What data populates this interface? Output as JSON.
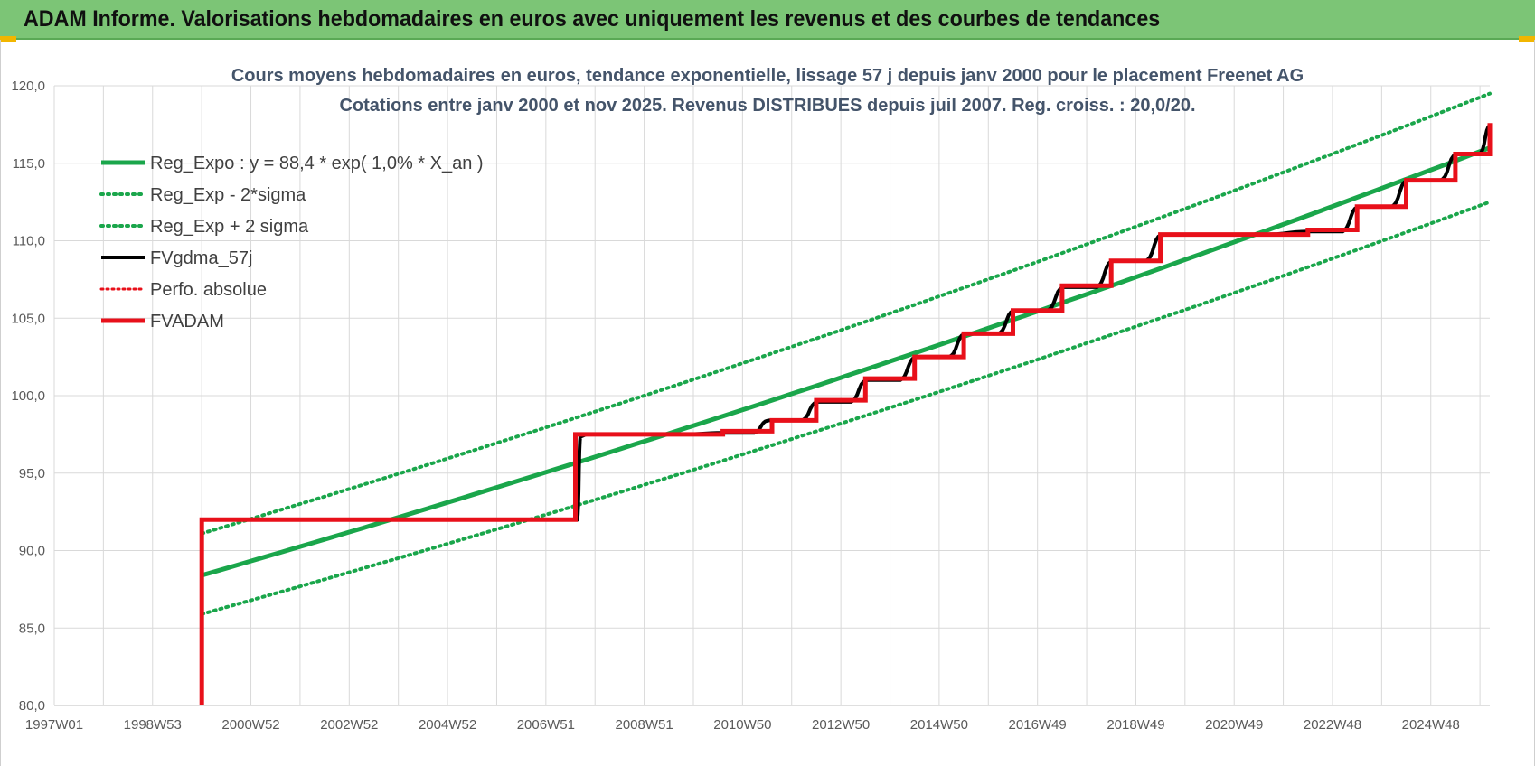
{
  "header": {
    "title": "ADAM Informe. Valorisations hebdomadaires en euros avec uniquement les revenus et des courbes de tendances"
  },
  "colors": {
    "header_bg": "#7cc576",
    "reg_green": "#1aa64b",
    "fv_black": "#000000",
    "adam_red": "#e8101a",
    "grid": "#d9d9d9"
  },
  "chart_data": {
    "type": "line",
    "title": "Cours moyens hebdomadaires en euros, tendance exponentielle, lissage 57 j depuis janv 2000 pour le placement Freenet AG",
    "subtitle": "Cotations entre janv 2000 et nov 2025. Revenus DISTRIBUES depuis juil 2007. Reg. croiss. : 20,0/20.",
    "xlabel": "",
    "ylabel": "",
    "xlim": [
      1997.0,
      2026.2
    ],
    "ylim": [
      80,
      120
    ],
    "y_ticks": [
      "80,0",
      "85,0",
      "90,0",
      "95,0",
      "100,0",
      "105,0",
      "110,0",
      "115,0",
      "120,0"
    ],
    "x_tick_labels": [
      "1997W01",
      "1998W53",
      "2000W52",
      "2002W52",
      "2004W52",
      "2006W51",
      "2008W51",
      "2010W50",
      "2012W50",
      "2014W50",
      "2016W49",
      "2018W49",
      "2020W49",
      "2022W48",
      "2024W48"
    ],
    "x_tick_years": [
      1997.0,
      1999.0,
      2001.0,
      2003.0,
      2005.0,
      2007.0,
      2009.0,
      2011.0,
      2013.0,
      2015.0,
      2017.0,
      2019.0,
      2021.0,
      2023.0,
      2025.0
    ],
    "grid": true,
    "legend_position": "top-left",
    "series": [
      {
        "name": "Reg_Expo : y = 88,4 * exp( 1,0% *  X_an )",
        "style": "solid-green",
        "points": [
          [
            2000.0,
            88.4
          ],
          [
            2026.2,
            116.0
          ]
        ]
      },
      {
        "name": "Reg_Exp - 2*sigma",
        "style": "dotted-green",
        "points": [
          [
            2000.0,
            85.9
          ],
          [
            2026.2,
            112.5
          ]
        ]
      },
      {
        "name": "Reg_Exp + 2 sigma",
        "style": "dotted-green",
        "points": [
          [
            2000.0,
            91.1
          ],
          [
            2026.2,
            119.5
          ]
        ]
      },
      {
        "name": "FVgdma_57j",
        "style": "solid-black-smooth",
        "points": [
          [
            2000.0,
            92.0
          ],
          [
            2007.5,
            92.0
          ],
          [
            2007.7,
            97.5
          ],
          [
            2010.6,
            97.6
          ],
          [
            2011.5,
            98.4
          ],
          [
            2012.5,
            99.6
          ],
          [
            2013.5,
            101.0
          ],
          [
            2014.5,
            102.5
          ],
          [
            2015.5,
            104.0
          ],
          [
            2016.5,
            105.5
          ],
          [
            2017.5,
            107.0
          ],
          [
            2018.5,
            108.7
          ],
          [
            2019.5,
            110.4
          ],
          [
            2022.5,
            110.6
          ],
          [
            2023.5,
            112.2
          ],
          [
            2024.5,
            113.9
          ],
          [
            2025.5,
            115.6
          ],
          [
            2026.2,
            117.5
          ]
        ]
      },
      {
        "name": "Perfo. absolue",
        "style": "dotted-red",
        "points": []
      },
      {
        "name": "FVADAM",
        "style": "solid-red-step",
        "steps": [
          [
            2000.0,
            92.0
          ],
          [
            2007.6,
            97.5
          ],
          [
            2010.6,
            97.7
          ],
          [
            2011.6,
            98.4
          ],
          [
            2012.5,
            99.7
          ],
          [
            2013.5,
            101.1
          ],
          [
            2014.5,
            102.5
          ],
          [
            2015.5,
            104.0
          ],
          [
            2016.5,
            105.5
          ],
          [
            2017.5,
            107.1
          ],
          [
            2018.5,
            108.7
          ],
          [
            2019.5,
            110.4
          ],
          [
            2022.5,
            110.7
          ],
          [
            2023.5,
            112.2
          ],
          [
            2024.5,
            113.9
          ],
          [
            2025.5,
            115.6
          ],
          [
            2026.2,
            117.6
          ]
        ],
        "start_from_bottom": true
      }
    ]
  }
}
